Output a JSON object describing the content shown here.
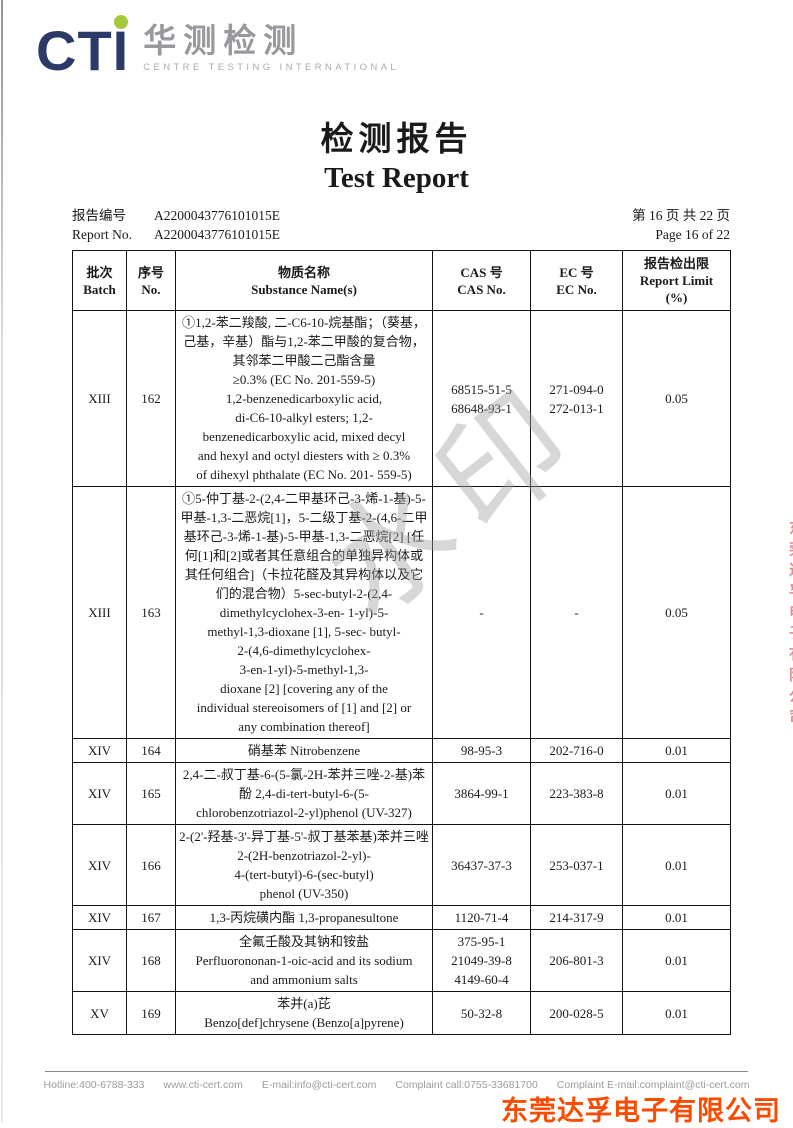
{
  "logo": {
    "cti": "CTI",
    "cn": "华测检测",
    "tagline": "CENTRE TESTING INTERNATIONAL",
    "navy": "#2b3a67",
    "green": "#a6c93c",
    "gray": "#97999c"
  },
  "title": {
    "cn": "检测报告",
    "en": "Test Report"
  },
  "report_info": {
    "label_cn": "报告编号",
    "label_en": "Report No.",
    "number_cn_line": "A2200043776101015E",
    "number_en_line": "A2200043776101015E",
    "page_cn": "第 16 页  共 22 页",
    "page_en": "Page 16 of 22"
  },
  "table": {
    "headers": {
      "batch": "批次\nBatch",
      "no": "序号\nNo.",
      "substance": "物质名称\nSubstance Name(s)",
      "cas": "CAS 号\nCAS No.",
      "ec": "EC 号\nEC No.",
      "limit": "报告检出限\nReport Limit\n(%)"
    },
    "rows": [
      {
        "batch": "XIII",
        "no": "162",
        "name": "①1,2-苯二羧酸, 二-C6-10-烷基酯；（葵基，己基，辛基）酯与1,2-苯二甲酸的复合物，其邻苯二甲酸二己酯含量\n≥0.3% (EC No. 201-559-5)\n1,2-benzenedicarboxylic acid,\ndi-C6-10-alkyl esters; 1,2-\nbenzenedicarboxylic acid, mixed decyl\nand hexyl and octyl diesters with ≥ 0.3%\nof dihexyl phthalate (EC No. 201- 559-5)",
        "cas": "68515-51-5\n68648-93-1",
        "ec": "271-094-0\n272-013-1",
        "limit": "0.05"
      },
      {
        "batch": "XIII",
        "no": "163",
        "name": "①5-仲丁基-2-(2,4-二甲基环己-3-烯-1-基)-5-甲基-1,3-二恶烷[1]，5-二级丁基-2-(4,6-二甲基环己-3-烯-1-基)-5-甲基-1,3-二恶烷[2] [任何[1]和[2]或者其任意组合的单独异构体或其任何组合]（卡拉花醛及其异构体以及它们的混合物）5-sec-butyl-2-(2,4-\ndimethylcyclohex-3-en- 1-yl)-5-\nmethyl-1,3-dioxane [1], 5-sec- butyl-\n2-(4,6-dimethylcyclohex-\n3-en-1-yl)-5-methyl-1,3-\ndioxane [2] [covering any of the\nindividual stereoisomers of [1] and [2] or\nany combination thereof]",
        "cas": "-",
        "ec": "-",
        "limit": "0.05"
      },
      {
        "batch": "XIV",
        "no": "164",
        "name": "硝基苯 Nitrobenzene",
        "cas": "98-95-3",
        "ec": "202-716-0",
        "limit": "0.01"
      },
      {
        "batch": "XIV",
        "no": "165",
        "name": "2,4-二-叔丁基-6-(5-氯-2H-苯并三唑-2-基)苯酚 2,4-di-tert-butyl-6-(5-\nchlorobenzotriazol-2-yl)phenol (UV-327)",
        "cas": "3864-99-1",
        "ec": "223-383-8",
        "limit": "0.01"
      },
      {
        "batch": "XIV",
        "no": "166",
        "name": "2-(2'-羟基-3'-异丁基-5'-叔丁基苯基)苯并三唑 2-(2H-benzotriazol-2-yl)-\n4-(tert-butyl)-6-(sec-butyl)\nphenol (UV-350)",
        "cas": "36437-37-3",
        "ec": "253-037-1",
        "limit": "0.01"
      },
      {
        "batch": "XIV",
        "no": "167",
        "name": "1,3-丙烷磺内酯 1,3-propanesultone",
        "cas": "1120-71-4",
        "ec": "214-317-9",
        "limit": "0.01"
      },
      {
        "batch": "XIV",
        "no": "168",
        "name": "全氟壬酸及其钠和铵盐\nPerfluorononan-1-oic-acid and its sodium\nand ammonium salts",
        "cas": "375-95-1\n21049-39-8\n4149-60-4",
        "ec": "206-801-3",
        "limit": "0.01"
      },
      {
        "batch": "XV",
        "no": "169",
        "name": "苯并(a)芘\nBenzo[def]chrysene (Benzo[a]pyrene)",
        "cas": "50-32-8",
        "ec": "200-028-5",
        "limit": "0.01"
      }
    ]
  },
  "watermark": {
    "diagonal_text": "水印",
    "right_edge_text": "东莞达孚电子有限公司",
    "company_red_text": "东莞达孚电子有限公司",
    "red": "#fb4b01"
  },
  "footer": {
    "items": [
      "Hotline:400-6788-333",
      "www.cti-cert.com",
      "E-mail:info@cti-cert.com",
      "Complaint call:0755-33681700",
      "Complaint E-mail:complaint@cti-cert.com"
    ]
  }
}
